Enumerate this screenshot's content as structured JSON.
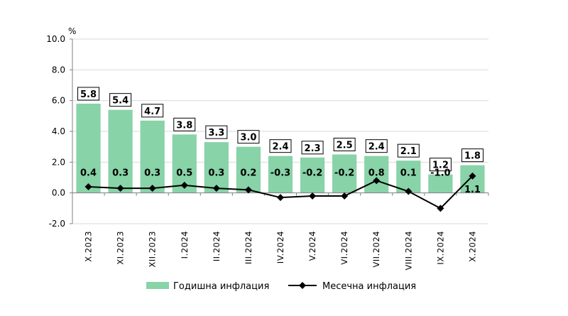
{
  "chart_data": {
    "type": "bar",
    "unit_label": "%",
    "categories": [
      "X.2023",
      "XI.2023",
      "XII.2023",
      "I.2024",
      "II.2024",
      "III.2024",
      "IV.2024",
      "V.2024",
      "VI.2024",
      "VII.2024",
      "VIII.2024",
      "IX.2024",
      "X.2024"
    ],
    "series": [
      {
        "name": "Годишна инфлация",
        "kind": "bar",
        "color": "#88d3a8",
        "values": [
          5.8,
          5.4,
          4.7,
          3.8,
          3.3,
          3.0,
          2.4,
          2.3,
          2.5,
          2.4,
          2.1,
          1.2,
          1.8
        ]
      },
      {
        "name": "Месечна инфлация",
        "kind": "line",
        "color": "#000000",
        "values": [
          0.4,
          0.3,
          0.3,
          0.5,
          0.3,
          0.2,
          -0.3,
          -0.2,
          -0.2,
          0.8,
          0.1,
          -1.0,
          1.1
        ]
      }
    ],
    "ylim": [
      -2.0,
      10.0
    ],
    "yticks": [
      "-2.0",
      "0.0",
      "2.0",
      "4.0",
      "6.0",
      "8.0",
      "10.0"
    ],
    "grid": true,
    "legend_position": "bottom"
  }
}
